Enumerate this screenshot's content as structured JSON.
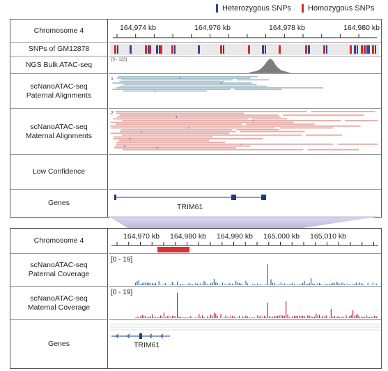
{
  "legend": {
    "heterozygous": "Heterozygous SNPs",
    "homozygous": "Homozygous SNPs"
  },
  "colors": {
    "heterozygous": "#2f45a3",
    "homozygous": "#d8262e",
    "paternal_reads": "#a7bfcb",
    "maternal_reads": "#e8b0ac",
    "atac_peak": "#7d7d7d",
    "gene": "#1d3b8a",
    "paternal_cov": "#2d6a9f",
    "maternal_cov": "#c51b5e",
    "zoom": "#8a83c3",
    "region": "#d63232"
  },
  "top": {
    "rows": {
      "chromosome": "Chromosome 4",
      "snps": "SNPs of GM12878",
      "bulk": "NGS Bulk ATAC-seq",
      "paternal": "scNanoATAC-seq\nPaternal Alignments",
      "maternal": "scNanoATAC-seq\nMaternal Alignments",
      "low_conf": "Low Confidence",
      "genes": "Genes"
    },
    "ticks": [
      "164,974 kb",
      "164,976 kb",
      "164,978 kb",
      "164,980 kb"
    ],
    "bulk_range": "[0 - 123]",
    "paternal_marker": "1",
    "maternal_marker": "2",
    "gene_name": "TRIM61"
  },
  "bottom": {
    "rows": {
      "chromosome": "Chromosome 4",
      "paternal": "scNanoATAC-seq\nPaternal Coverage",
      "maternal": "scNanoATAC-seq\nMaternal Coverage",
      "genes": "Genes"
    },
    "ticks": [
      "164,970 kb",
      "164,980 kb",
      "164,990 kb",
      "165,000 kb",
      "165,010 kb"
    ],
    "paternal_range": "[0 - 19]",
    "maternal_range": "[0 - 19]",
    "gene_name": "TRIM61"
  }
}
